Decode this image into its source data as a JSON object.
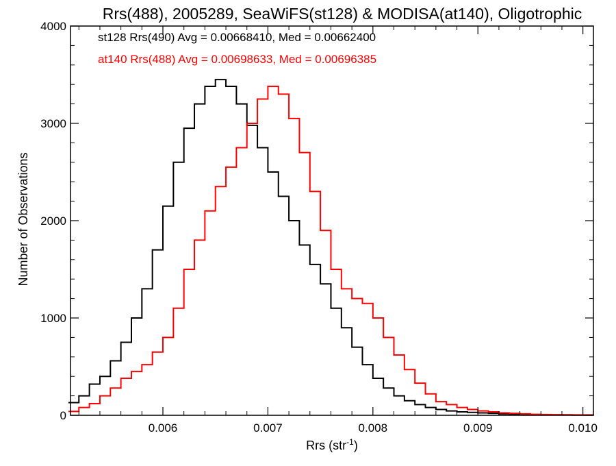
{
  "chart_data": {
    "type": "histogram",
    "title": "Rrs(488), 2005289, SeaWiFS(st128) & MODISA(at140), Oligotrophic",
    "xlabel": "Rrs (str",
    "xlabel_sup": "-1",
    "xlabel_close": ")",
    "ylabel": "Number of Observations",
    "xlim": [
      0.00512,
      0.0101
    ],
    "ylim": [
      0,
      4000
    ],
    "xticks": [
      0.006,
      0.007,
      0.008,
      0.009,
      0.01
    ],
    "xtick_labels": [
      "0.006",
      "0.007",
      "0.008",
      "0.009",
      "0.010"
    ],
    "yticks": [
      0,
      1000,
      2000,
      3000,
      4000
    ],
    "ytick_labels": [
      "0",
      "1000",
      "2000",
      "3000",
      "4000"
    ],
    "grid": false,
    "legend": "top-left",
    "series": [
      {
        "label": "st128 Rrs(490) Avg = 0.00668410, Med = 0.00662400",
        "color": "#000000",
        "x": [
          0.0051,
          0.0052,
          0.0053,
          0.0054,
          0.0055,
          0.0056,
          0.0057,
          0.0058,
          0.0059,
          0.006,
          0.0061,
          0.0062,
          0.0063,
          0.0064,
          0.0065,
          0.0066,
          0.0067,
          0.0068,
          0.0069,
          0.007,
          0.0071,
          0.0072,
          0.0073,
          0.0074,
          0.0075,
          0.0076,
          0.0077,
          0.0078,
          0.0079,
          0.008,
          0.0081,
          0.0082,
          0.0083,
          0.0084,
          0.0085,
          0.0086,
          0.0087,
          0.0088,
          0.0089,
          0.009,
          0.0091,
          0.0092,
          0.0093,
          0.0094,
          0.0095,
          0.0096,
          0.0097,
          0.0098,
          0.0099,
          0.0101
        ],
        "y": [
          130,
          200,
          320,
          400,
          560,
          750,
          1000,
          1300,
          1700,
          2150,
          2600,
          2950,
          3200,
          3380,
          3450,
          3380,
          3200,
          2980,
          2750,
          2500,
          2250,
          2000,
          1750,
          1550,
          1350,
          1100,
          900,
          700,
          520,
          380,
          280,
          200,
          150,
          110,
          80,
          60,
          45,
          35,
          30,
          25,
          20,
          15,
          12,
          10,
          8,
          6,
          5,
          4,
          3,
          0
        ]
      },
      {
        "label": "at140 Rrs(488) Avg = 0.00698633, Med = 0.00696385",
        "color": "#ff0000",
        "x": [
          0.0051,
          0.0052,
          0.0053,
          0.0054,
          0.0055,
          0.0056,
          0.0057,
          0.0058,
          0.0059,
          0.006,
          0.0061,
          0.0062,
          0.0063,
          0.0064,
          0.0065,
          0.0066,
          0.0067,
          0.0068,
          0.0069,
          0.007,
          0.0071,
          0.0072,
          0.0073,
          0.0074,
          0.0075,
          0.0076,
          0.0077,
          0.0078,
          0.0079,
          0.008,
          0.0081,
          0.0082,
          0.0083,
          0.0084,
          0.0085,
          0.0086,
          0.0087,
          0.0088,
          0.0089,
          0.009,
          0.0091,
          0.0092,
          0.0093,
          0.0094,
          0.0095,
          0.0096,
          0.0097,
          0.0098,
          0.0099,
          0.0101
        ],
        "y": [
          40,
          80,
          120,
          200,
          280,
          380,
          450,
          520,
          650,
          800,
          1100,
          1500,
          1800,
          2100,
          2350,
          2550,
          2750,
          3000,
          3250,
          3380,
          3300,
          3050,
          2700,
          2300,
          1900,
          1500,
          1300,
          1200,
          1150,
          1000,
          800,
          620,
          470,
          330,
          220,
          140,
          110,
          80,
          60,
          45,
          35,
          25,
          20,
          15,
          10,
          8,
          6,
          5,
          4,
          0
        ]
      }
    ]
  }
}
